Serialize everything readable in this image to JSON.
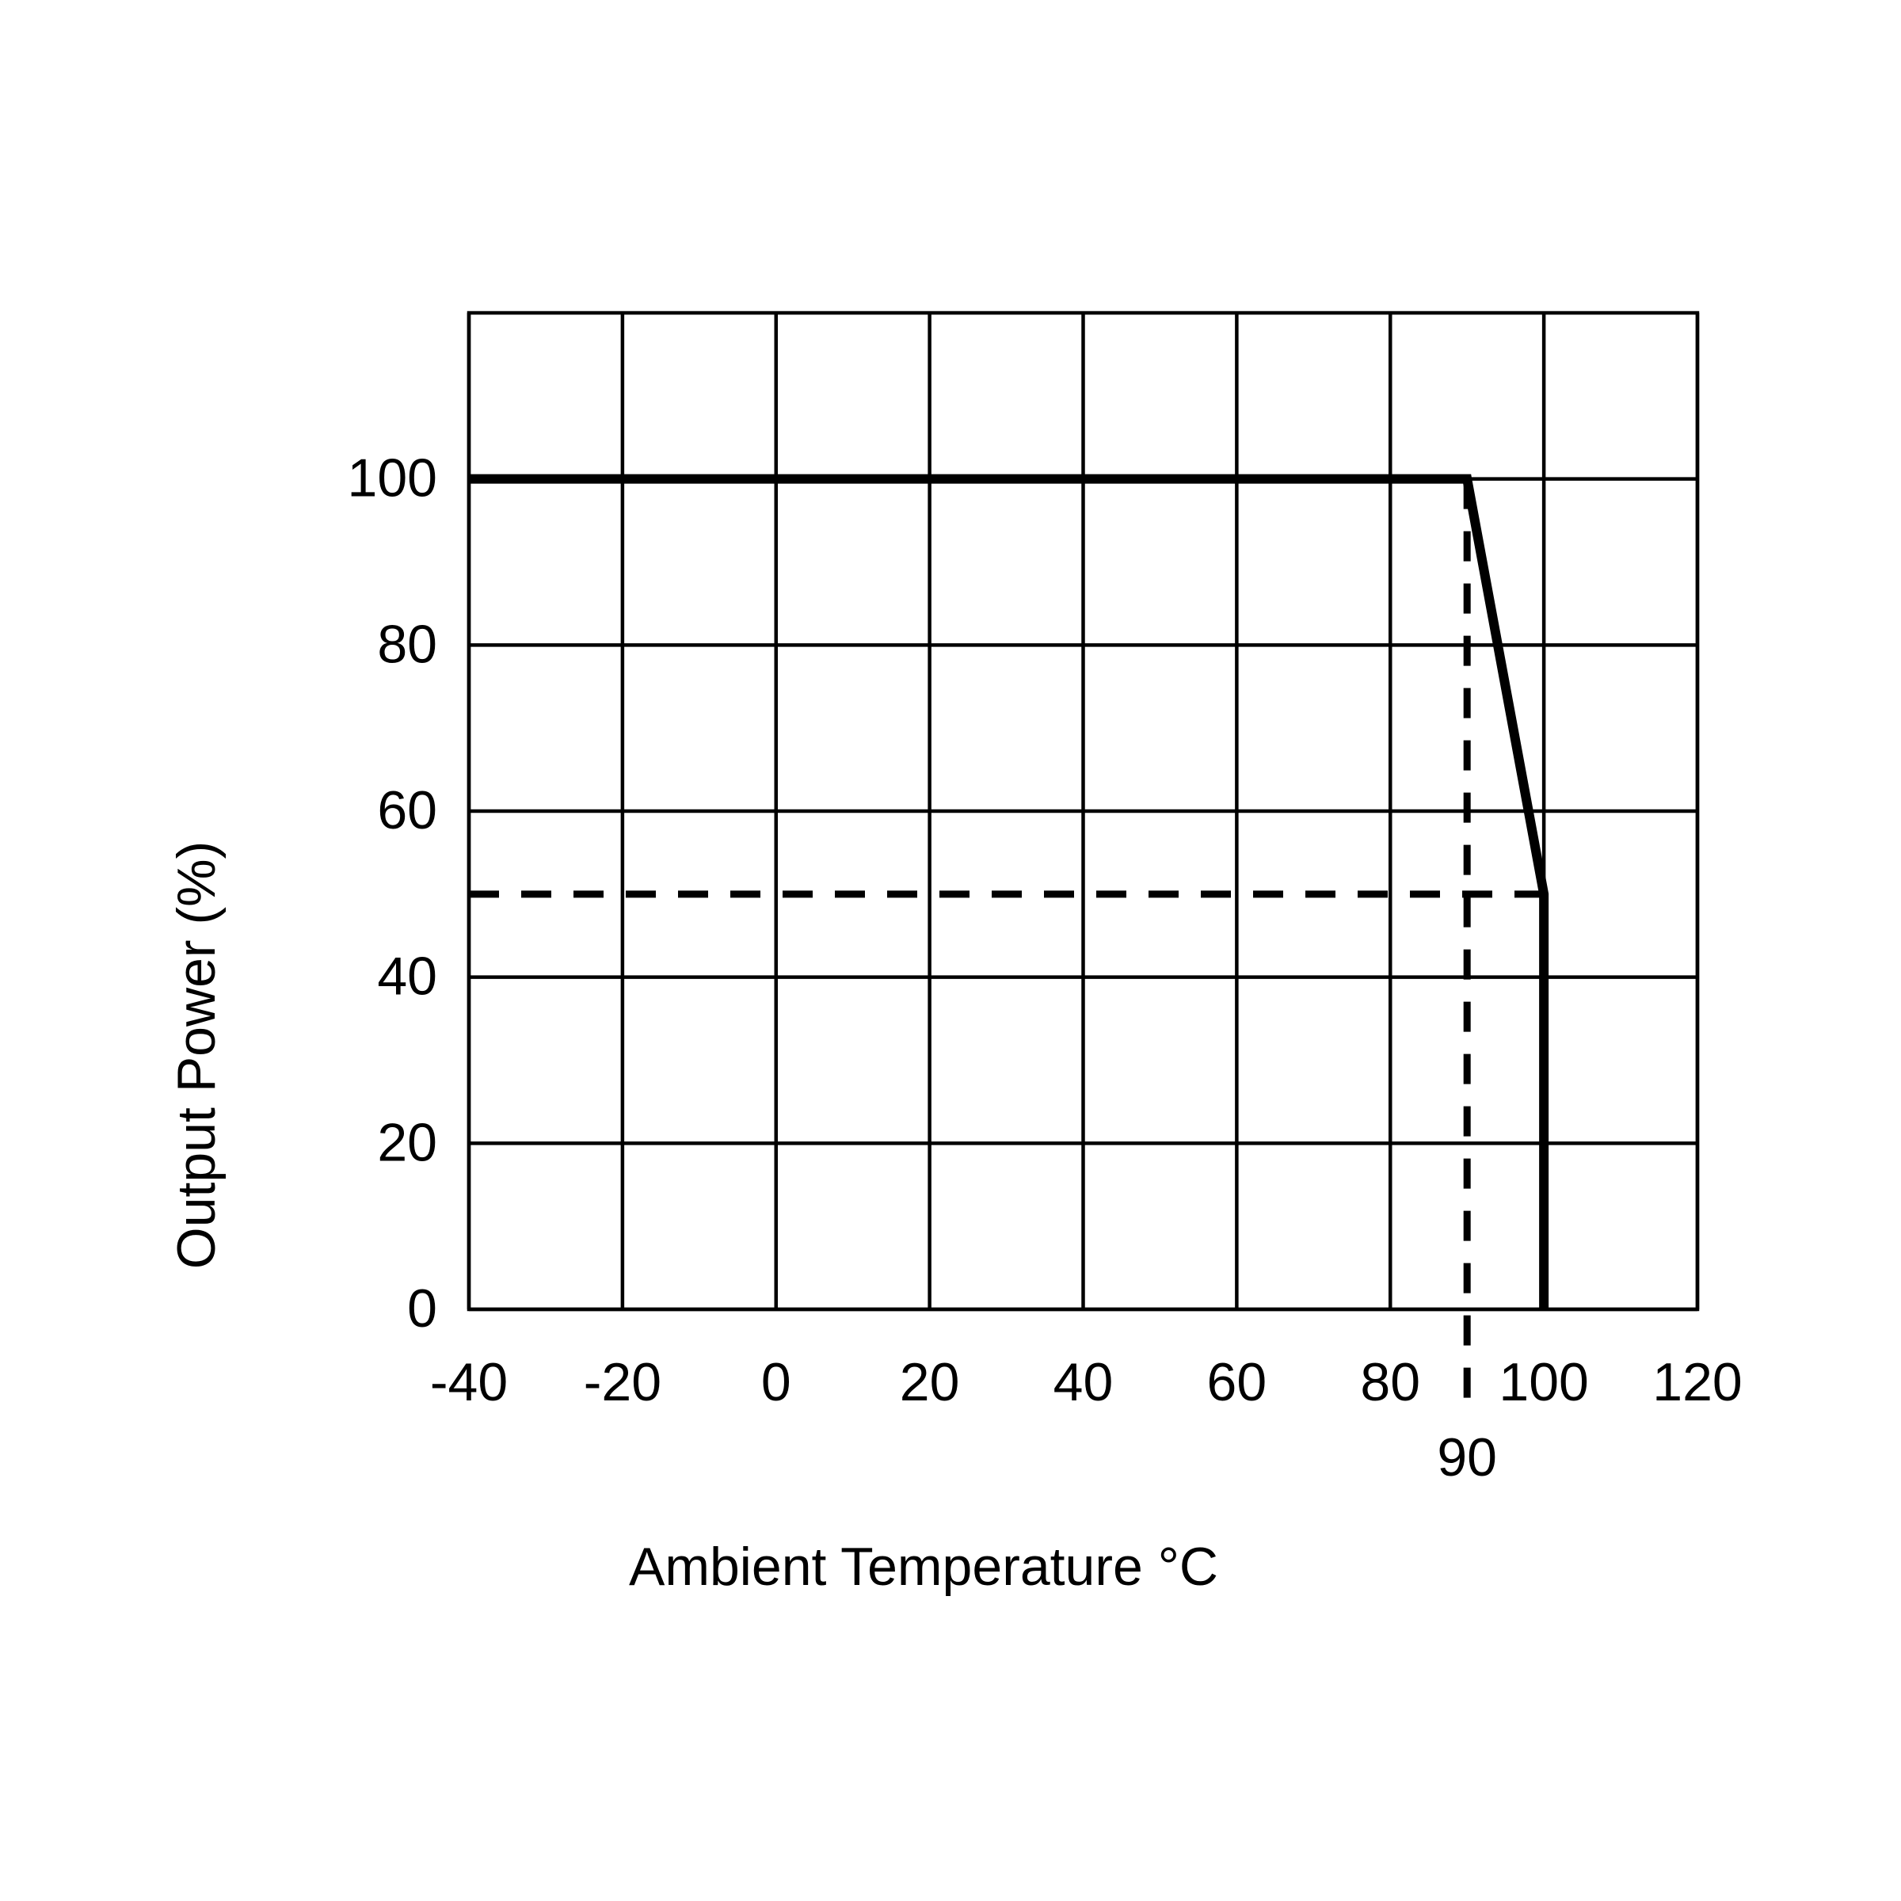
{
  "chart_data": {
    "type": "line",
    "x_label": "Ambient Temperature °C",
    "y_label": "Output Power (%)",
    "x": [
      -40,
      90,
      100,
      100
    ],
    "values": [
      100,
      100,
      50,
      0
    ],
    "color": "#000000",
    "xlim": [
      -40,
      120
    ],
    "xticks": [
      -40,
      -20,
      0,
      20,
      40,
      60,
      80,
      100,
      120
    ],
    "ylim": [
      0,
      120
    ],
    "yticks": [
      0,
      20,
      40,
      60,
      80,
      100
    ],
    "grid": true,
    "vlines": [
      90
    ],
    "hlines": [
      50
    ]
  }
}
